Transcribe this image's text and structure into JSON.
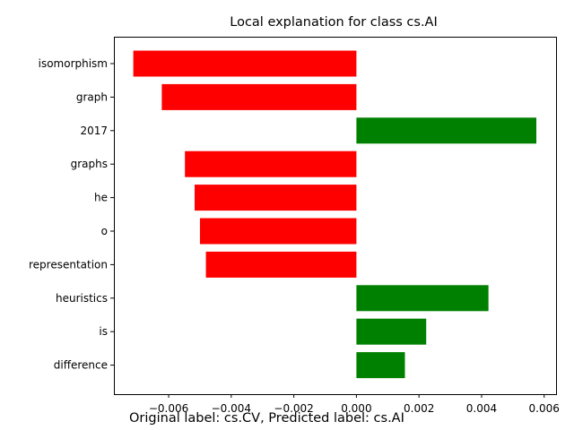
{
  "chart_data": {
    "type": "bar",
    "orientation": "horizontal",
    "title": "Local explanation for class cs.AI",
    "xlabel": "",
    "ylabel": "",
    "categories": [
      "isomorphism",
      "graph",
      "2017",
      "graphs",
      "he",
      "o",
      "representation",
      "heuristics",
      "is",
      "difference"
    ],
    "values": [
      -0.00713,
      -0.00622,
      0.00575,
      -0.00548,
      -0.00517,
      -0.005,
      -0.00481,
      0.00422,
      0.00223,
      0.00155
    ],
    "xlim": [
      -0.00775,
      0.00638
    ],
    "xticks": [
      -0.006,
      -0.004,
      -0.002,
      0.0,
      0.002,
      0.004,
      0.006
    ],
    "xtick_labels": [
      "−0.006",
      "−0.004",
      "−0.002",
      "0.000",
      "0.002",
      "0.004",
      "0.006"
    ],
    "grid": false,
    "colors": {
      "negative": "#ff0000",
      "positive": "#008000"
    }
  },
  "caption": "Original label: cs.CV, Predicted label: cs.AI"
}
